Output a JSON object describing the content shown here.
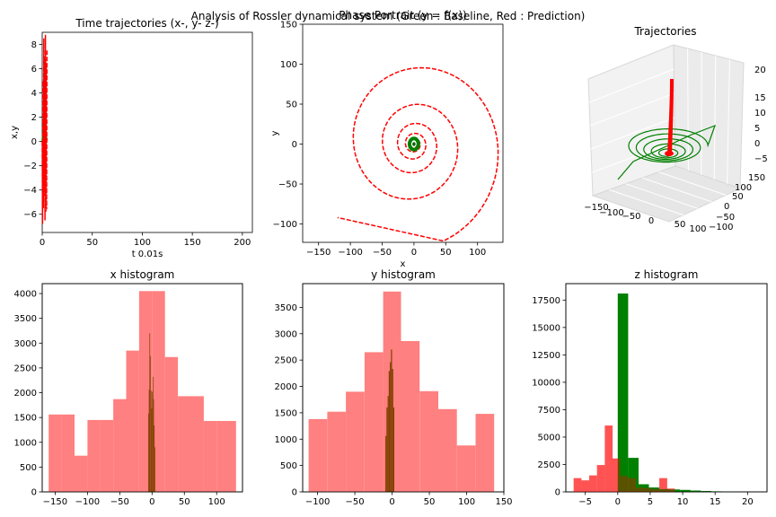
{
  "figure": {
    "suptitle": "Analysis of Rossler dynamical system (Green : Baseline, Red : Prediction)",
    "colors": {
      "baseline": "#008000",
      "prediction": "#ff0000",
      "hist_prediction": "#ff8080",
      "hist_overlap": "#804000"
    }
  },
  "chart_data": [
    {
      "type": "line",
      "title": "Time trajectories (x-, y- z-)",
      "xlabel": "t 0.01s",
      "ylabel": "x,y",
      "xlim": [
        0,
        210
      ],
      "ylim": [
        -7.5,
        9
      ],
      "xticks": [
        0,
        50,
        100,
        150,
        200
      ],
      "yticks": [
        -6,
        -4,
        -2,
        0,
        2,
        4,
        6,
        8
      ],
      "series": [
        {
          "color": "#008000",
          "x": [
            0,
            1,
            2,
            3,
            4,
            5
          ],
          "y": [
            0.0,
            1.5,
            -0.5,
            2.0,
            0.4,
            0.1
          ]
        },
        {
          "color": "#ff0000",
          "style": "dashed",
          "x": [
            0,
            0.4,
            0.8,
            1.2,
            1.6,
            2.0,
            2.4,
            2.8,
            3.2,
            3.6,
            4.0,
            4.4,
            4.8
          ],
          "y": [
            0,
            -6.8,
            5.0,
            -5.5,
            8.5,
            -4.5,
            7.0,
            -6.5,
            8.8,
            -5.8,
            6.5,
            -5.6,
            7.5
          ]
        }
      ]
    },
    {
      "type": "line",
      "title": "Phase Portrait (y = f(x))",
      "xlabel": "x",
      "ylabel": "y",
      "xlim": [
        -175,
        140
      ],
      "ylim": [
        -123,
        150
      ],
      "xticks": [
        -150,
        -100,
        -50,
        0,
        50,
        100
      ],
      "yticks": [
        -100,
        -50,
        0,
        50,
        100,
        150
      ],
      "spiral": {
        "center": [
          0,
          0
        ],
        "start_radius": 5,
        "end_radius": 150,
        "turns": 5.2,
        "end_point": [
          -120,
          -92
        ]
      },
      "baseline_blob": {
        "center": [
          0,
          0
        ],
        "radius": 7
      }
    },
    {
      "type": "line",
      "title": "Trajectories",
      "projection": "3d",
      "xticks": [
        -150,
        -100,
        -50,
        0,
        50,
        100
      ],
      "yticks": [
        -100,
        -50,
        0,
        50,
        100,
        150
      ],
      "zticks": [
        -5,
        0,
        5,
        10,
        15,
        20
      ]
    },
    {
      "type": "bar",
      "title": "x histogram",
      "xlim": [
        -170,
        140
      ],
      "ylim": [
        0,
        4200
      ],
      "xticks": [
        -150,
        -100,
        -50,
        0,
        50,
        100
      ],
      "yticks": [
        0,
        500,
        1000,
        1500,
        2000,
        2500,
        3000,
        3500,
        4000
      ],
      "series": [
        {
          "name": "",
          "color": "#ff8080",
          "bin_edges": [
            -160,
            -140,
            -120,
            -100,
            -80,
            -60,
            -40,
            -20,
            0,
            20,
            40,
            60,
            80,
            100,
            130
          ],
          "values": [
            1560,
            1560,
            730,
            1450,
            1450,
            1870,
            2850,
            4050,
            4050,
            2720,
            1930,
            1930,
            1430,
            1430
          ]
        },
        {
          "name": "",
          "color": "#804000",
          "bin_edges": [
            -6,
            -5,
            -4,
            -3,
            -2,
            -1,
            0,
            1,
            2,
            3,
            4,
            5,
            6,
            7
          ],
          "values": [
            1580,
            2060,
            3200,
            2740,
            2040,
            1680,
            2020,
            2320,
            1870,
            1340,
            900,
            0,
            0
          ]
        }
      ]
    },
    {
      "type": "bar",
      "title": "y histogram",
      "xlim": [
        -120,
        150
      ],
      "ylim": [
        0,
        3950
      ],
      "xticks": [
        -100,
        -50,
        0,
        50,
        100,
        150
      ],
      "yticks": [
        0,
        500,
        1000,
        1500,
        2000,
        2500,
        3000,
        3500
      ],
      "series": [
        {
          "name": "",
          "color": "#ff8080",
          "bin_edges": [
            -112,
            -87,
            -62,
            -37,
            -12,
            12,
            37,
            62,
            87,
            112,
            137
          ],
          "values": [
            1380,
            1520,
            1900,
            2650,
            3800,
            2860,
            1910,
            1570,
            880,
            1480
          ]
        },
        {
          "name": "",
          "color": "#804000",
          "bin_edges": [
            -9,
            -7.5,
            -6,
            -4.5,
            -3,
            -1.5,
            0,
            1.5,
            3,
            4.5
          ],
          "values": [
            1060,
            1600,
            1820,
            2290,
            2460,
            2700,
            2330,
            1600,
            0
          ]
        }
      ]
    },
    {
      "type": "bar",
      "title": "z histogram",
      "xlim": [
        -8,
        23
      ],
      "ylim": [
        0,
        19000
      ],
      "xticks": [
        -5,
        0,
        5,
        10,
        15,
        20
      ],
      "yticks": [
        0,
        2500,
        5000,
        7500,
        10000,
        12500,
        15000,
        17500
      ],
      "series": [
        {
          "name": "",
          "color": "#ff8080",
          "bin_edges": [
            -6.8,
            -5.6,
            -4.4,
            -3.2,
            -2.0,
            -0.8,
            0.4,
            1.6,
            2.8,
            4.0,
            5.2,
            6.4,
            7.6,
            8.8
          ],
          "values": [
            1250,
            1050,
            1500,
            2450,
            6050,
            3050,
            1450,
            1250,
            400,
            350,
            250,
            1250,
            300
          ]
        },
        {
          "name": "",
          "color": "#008000",
          "bin_edges": [
            0,
            1.6,
            3.2,
            4.8,
            6.4,
            8.0,
            9.6,
            11.2,
            12.8,
            14.4,
            16.0,
            17.6,
            19.2
          ],
          "values": [
            18100,
            3100,
            700,
            400,
            250,
            220,
            180,
            120,
            80,
            50,
            20,
            10
          ]
        }
      ]
    }
  ]
}
